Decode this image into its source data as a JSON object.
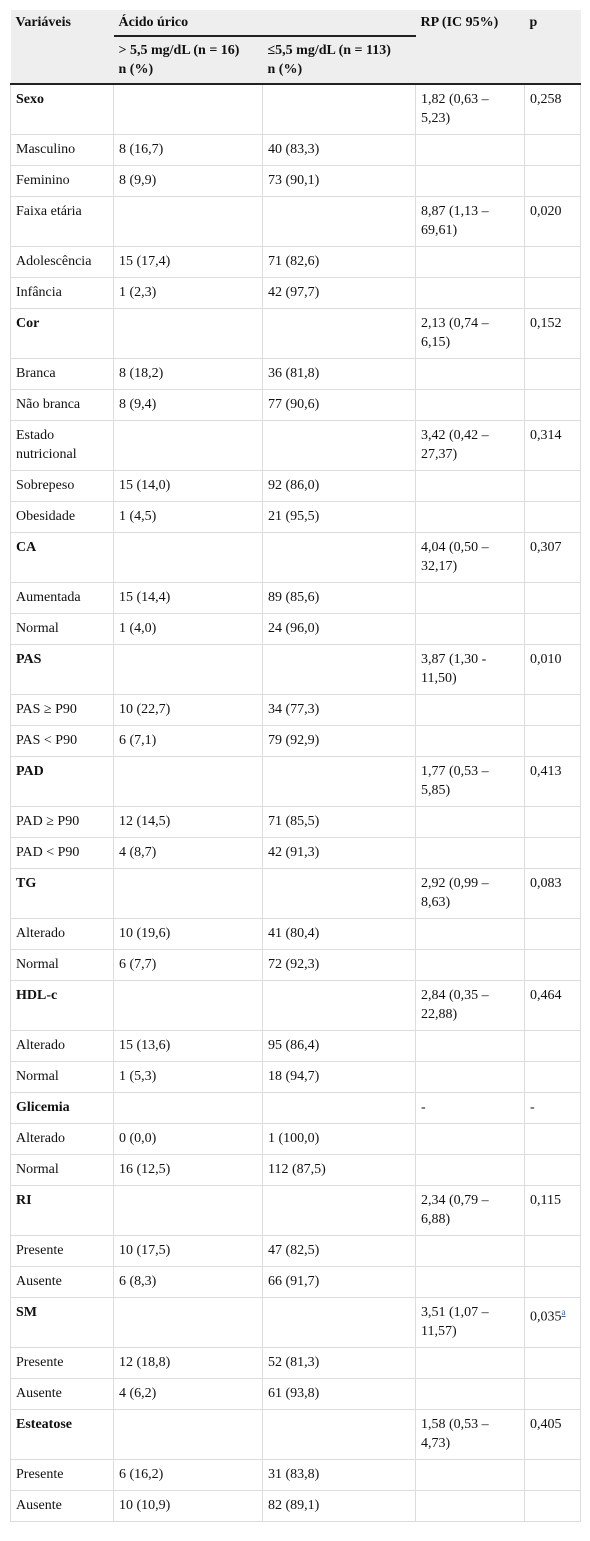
{
  "table": {
    "header": {
      "variables": "Variáveis",
      "group": "Ácido úrico",
      "col1": "> 5,5 mg/dL (n = 16)",
      "col1_unit": "n (%)",
      "col2": "≤5,5 mg/dL (n = 113)",
      "col2_unit": "n (%)",
      "rp": "RP (IC 95%)",
      "p": "p"
    },
    "rows": [
      {
        "cells": [
          "Sexo",
          null,
          null,
          "1,82 (0,63 – 5,23)",
          "0,258"
        ],
        "bold": true
      },
      {
        "cells": [
          "Masculino",
          "8 (16,7)",
          "40 (83,3)",
          null,
          null
        ]
      },
      {
        "cells": [
          "Feminino",
          "8 (9,9)",
          "73 (90,1)",
          null,
          null
        ]
      },
      {
        "cells": [
          "Faixa etária",
          null,
          null,
          "8,87 (1,13 – 69,61)",
          "0,020"
        ]
      },
      {
        "cells": [
          "Adolescência",
          "15 (17,4)",
          "71 (82,6)",
          null,
          null
        ]
      },
      {
        "cells": [
          "Infância",
          "1 (2,3)",
          "42 (97,7)",
          null,
          null
        ]
      },
      {
        "cells": [
          "Cor",
          null,
          null,
          "2,13 (0,74 – 6,15)",
          "0,152"
        ],
        "bold": true
      },
      {
        "cells": [
          "Branca",
          "8 (18,2)",
          "36 (81,8)",
          null,
          null
        ]
      },
      {
        "cells": [
          "Não branca",
          "8 (9,4)",
          "77 (90,6)",
          null,
          null
        ]
      },
      {
        "cells": [
          "Estado nutricional",
          null,
          null,
          "3,42 (0,42 – 27,37)",
          "0,314"
        ]
      },
      {
        "cells": [
          "Sobrepeso",
          "15 (14,0)",
          "92 (86,0)",
          null,
          null
        ]
      },
      {
        "cells": [
          "Obesidade",
          "1 (4,5)",
          "21 (95,5)",
          null,
          null
        ]
      },
      {
        "cells": [
          "CA",
          null,
          null,
          "4,04 (0,50 – 32,17)",
          "0,307"
        ],
        "bold": true
      },
      {
        "cells": [
          "Aumentada",
          "15 (14,4)",
          "89 (85,6)",
          null,
          null
        ]
      },
      {
        "cells": [
          "Normal",
          "1 (4,0)",
          "24 (96,0)",
          null,
          null
        ]
      },
      {
        "cells": [
          "PAS",
          null,
          null,
          "3,87 (1,30 - 11,50)",
          "0,010"
        ],
        "bold": true
      },
      {
        "cells": [
          "PAS ≥ P90",
          "10 (22,7)",
          "34 (77,3)",
          null,
          null
        ]
      },
      {
        "cells": [
          "PAS < P90",
          "6 (7,1)",
          "79 (92,9)",
          null,
          null
        ]
      },
      {
        "cells": [
          "PAD",
          null,
          null,
          "1,77 (0,53 – 5,85)",
          "0,413"
        ],
        "bold": true
      },
      {
        "cells": [
          "PAD ≥ P90",
          "12 (14,5)",
          "71 (85,5)",
          null,
          null
        ]
      },
      {
        "cells": [
          "PAD < P90",
          "4 (8,7)",
          "42 (91,3)",
          null,
          null
        ]
      },
      {
        "cells": [
          "TG",
          null,
          null,
          "2,92 (0,99 – 8,63)",
          "0,083"
        ],
        "bold": true
      },
      {
        "cells": [
          "Alterado",
          "10 (19,6)",
          "41 (80,4)",
          null,
          null
        ]
      },
      {
        "cells": [
          "Normal",
          "6 (7,7)",
          "72 (92,3)",
          null,
          null
        ]
      },
      {
        "cells": [
          "HDL-c",
          null,
          null,
          "2,84 (0,35 – 22,88)",
          "0,464"
        ],
        "bold": true
      },
      {
        "cells": [
          "Alterado",
          "15 (13,6)",
          "95 (86,4)",
          null,
          null
        ]
      },
      {
        "cells": [
          "Normal",
          "1 (5,3)",
          "18 (94,7)",
          null,
          null
        ]
      },
      {
        "cells": [
          "Glicemia",
          null,
          null,
          "-",
          "-"
        ],
        "bold": true
      },
      {
        "cells": [
          "Alterado",
          "0 (0,0)",
          "1 (100,0)",
          null,
          null
        ]
      },
      {
        "cells": [
          "Normal",
          "16 (12,5)",
          "112 (87,5)",
          null,
          null
        ]
      },
      {
        "cells": [
          "RI",
          null,
          null,
          "2,34 (0,79 – 6,88)",
          "0,115"
        ],
        "bold": true
      },
      {
        "cells": [
          "Presente",
          "10 (17,5)",
          "47 (82,5)",
          null,
          null
        ]
      },
      {
        "cells": [
          "Ausente",
          "6 (8,3)",
          "66 (91,7)",
          null,
          null
        ]
      },
      {
        "cells": [
          "SM",
          null,
          null,
          "3,51 (1,07 – 11,57)",
          "0,035"
        ],
        "bold": true,
        "sup": "a"
      },
      {
        "cells": [
          "Presente",
          "12 (18,8)",
          "52 (81,3)",
          null,
          null
        ]
      },
      {
        "cells": [
          "Ausente",
          "4 (6,2)",
          "61 (93,8)",
          null,
          null
        ]
      },
      {
        "cells": [
          "Esteatose",
          null,
          null,
          "1,58 (0,53 – 4,73)",
          "0,405"
        ],
        "bold": true
      },
      {
        "cells": [
          "Presente",
          "6 (16,2)",
          "31 (83,8)",
          null,
          null
        ]
      },
      {
        "cells": [
          "Ausente",
          "10 (10,9)",
          "82 (89,1)",
          null,
          null
        ]
      }
    ]
  }
}
